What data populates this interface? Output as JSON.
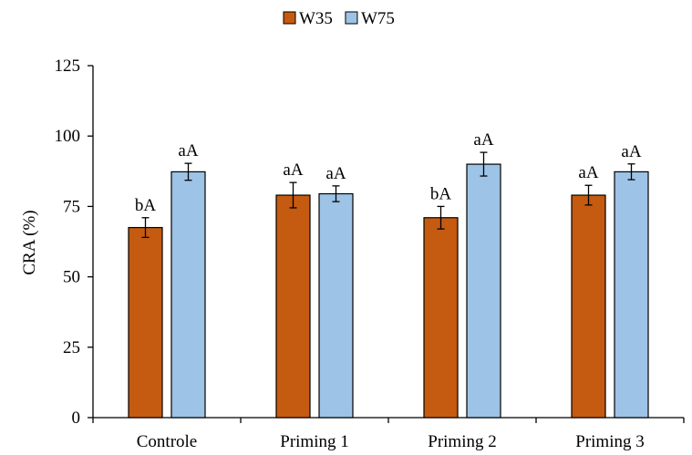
{
  "chart_data": {
    "type": "bar",
    "categories": [
      "Controle",
      "Priming 1",
      "Priming 2",
      "Priming 3"
    ],
    "series": [
      {
        "name": "W35",
        "color": "#c55a11",
        "values": [
          67.5,
          79.0,
          71.0,
          79.0
        ],
        "errors": [
          3.5,
          4.5,
          4.0,
          3.5
        ],
        "labels": [
          "bA",
          "aA",
          "bA",
          "aA"
        ]
      },
      {
        "name": "W75",
        "color": "#9dc3e6",
        "values": [
          87.3,
          79.5,
          90.0,
          87.3
        ],
        "errors": [
          3.0,
          2.8,
          4.2,
          2.8
        ],
        "labels": [
          "aA",
          "aA",
          "aA",
          "aA"
        ]
      }
    ],
    "ylabel": "CRA (%)",
    "xlabel": "",
    "ylim": [
      0,
      125
    ],
    "yticks": [
      0,
      25,
      50,
      75,
      100,
      125
    ],
    "grid": false,
    "legend_position": "top-center"
  }
}
